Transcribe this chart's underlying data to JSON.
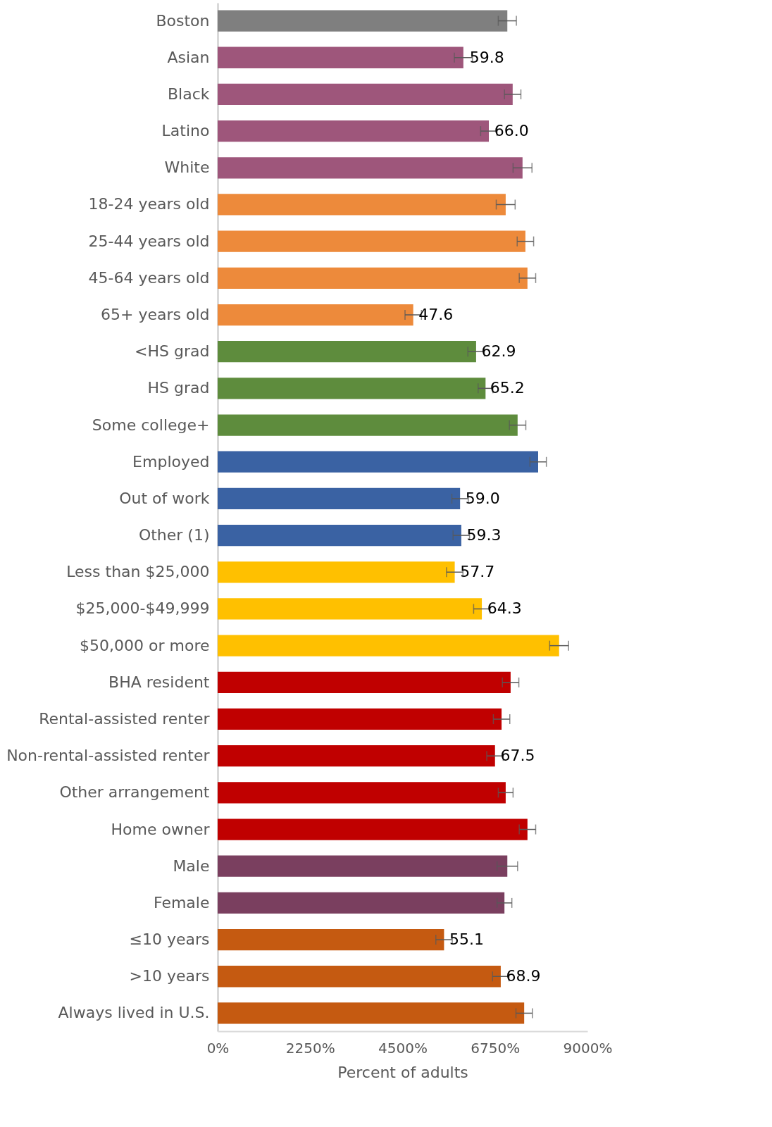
{
  "chart_data": {
    "type": "bar",
    "orientation": "horizontal",
    "xlabel": "Percent of adults",
    "categories": [
      "Boston",
      "Asian",
      "Black",
      "Latino",
      "White",
      "18-24 years old",
      "25-44 years old",
      "45-64 years old",
      "65+ years old",
      "<HS grad",
      "HS grad",
      "Some college+",
      "Employed",
      "Out of work",
      "Other (1)",
      "Less than $25,000",
      "$25,000-$49,999",
      "$50,000 or more",
      "BHA resident",
      "Rental-assisted renter",
      "Non-rental-assisted renter",
      "Other arrangement",
      "Home owner",
      "Male",
      "Female",
      "≤10 years",
      ">10 years",
      "Always lived in U.S."
    ],
    "values": [
      70.5,
      59.8,
      71.8,
      66.0,
      74.2,
      70.1,
      74.9,
      75.4,
      47.6,
      62.9,
      65.2,
      73.0,
      78.0,
      59.0,
      59.3,
      57.7,
      64.3,
      83.1,
      71.3,
      69.1,
      67.5,
      70.1,
      75.4,
      70.5,
      69.8,
      55.1,
      68.9,
      74.6
    ],
    "errors": [
      2.2,
      2.2,
      2.0,
      2.0,
      2.3,
      2.3,
      2.0,
      2.0,
      2.0,
      2.0,
      1.8,
      2.0,
      2.0,
      2.0,
      2.0,
      2.0,
      2.0,
      2.3,
      2.0,
      2.0,
      2.0,
      1.8,
      2.0,
      2.5,
      1.8,
      2.0,
      2.0,
      2.0
    ],
    "value_labels": [
      null,
      "59.8",
      null,
      "66.0",
      null,
      null,
      null,
      null,
      "47.6",
      "62.9",
      "65.2",
      null,
      null,
      "59.0",
      "59.3",
      "57.7",
      "64.3",
      null,
      null,
      null,
      "67.5",
      null,
      null,
      null,
      null,
      "55.1",
      "68.9",
      null
    ],
    "colors": [
      "#7f7f7f",
      "#9e567b",
      "#9e567b",
      "#9e567b",
      "#9e567b",
      "#ed8a3b",
      "#ed8a3b",
      "#ed8a3b",
      "#ed8a3b",
      "#5e8c3d",
      "#5e8c3d",
      "#5e8c3d",
      "#3a62a3",
      "#3a62a3",
      "#3a62a3",
      "#ffc000",
      "#ffc000",
      "#ffc000",
      "#c00000",
      "#c00000",
      "#c00000",
      "#c00000",
      "#c00000",
      "#7a3f5f",
      "#7a3f5f",
      "#c55a11",
      "#c55a11",
      "#c55a11"
    ],
    "xlim": [
      0,
      90
    ],
    "xticks": [
      {
        "value": 0,
        "label": "0%"
      },
      {
        "value": 22.5,
        "label": "2250%"
      },
      {
        "value": 45,
        "label": "4500%"
      },
      {
        "value": 67.5,
        "label": "6750%"
      },
      {
        "value": 90,
        "label": "9000%"
      }
    ],
    "grid": false
  }
}
